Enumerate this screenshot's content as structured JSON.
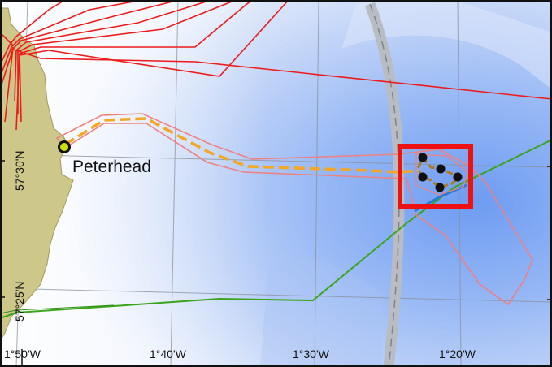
{
  "map": {
    "place_label": "Peterhead",
    "x_tick_labels": [
      "1°50'W",
      "1°40'W",
      "1°30'W",
      "1°20'W"
    ],
    "y_tick_labels": [
      "57°30'N",
      "57°25'N"
    ],
    "colors": {
      "land": "#cdc88a",
      "sea_shallow": "#eef3fd",
      "sea_deep": "#6f9df3",
      "cable_routes": "#ee1a1a",
      "export_corridor": "#f5999a",
      "export_cable": "#f5a623",
      "green_route": "#3aa51a",
      "highlight_box": "#ee1111",
      "shipping_lane": "#b9bcc2",
      "array_cable": "#b07a1c",
      "turbine": "#111111",
      "port_marker": "#cfe000"
    },
    "features": {
      "turbine_count": 5,
      "port_marker": "circle"
    }
  }
}
